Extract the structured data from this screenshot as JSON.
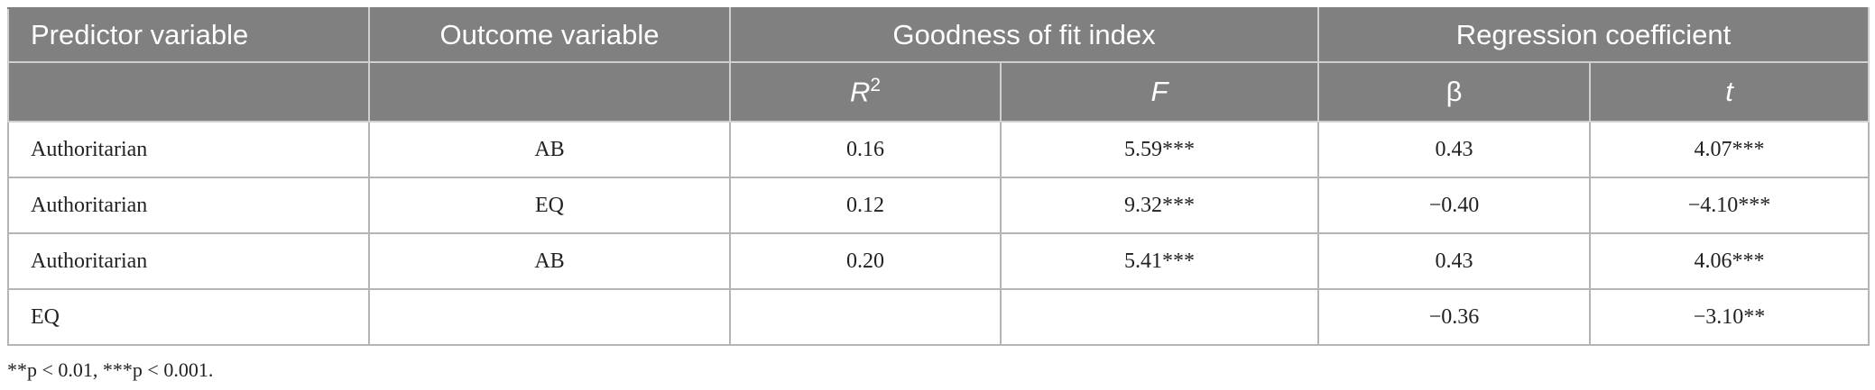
{
  "table": {
    "header": [
      [
        "Predictor variable",
        "Outcome variable",
        "Goodness of fit index",
        "Regression coefficient"
      ],
      [
        null,
        null,
        {
          "text": "R",
          "sup": "2"
        },
        "F",
        "β",
        "t"
      ]
    ],
    "rows": [
      [
        "Authoritarian",
        "AB",
        "0.16",
        "5.59***",
        "0.43",
        "4.07***"
      ],
      [
        "Authoritarian",
        "EQ",
        "0.12",
        "9.32***",
        "−0.40",
        "−4.10***"
      ],
      [
        "Authoritarian",
        "AB",
        "0.20",
        "5.41***",
        "0.43",
        "4.06***"
      ],
      [
        "EQ",
        null,
        null,
        null,
        "−0.36",
        "−3.10**"
      ]
    ],
    "footnote": "**p < 0.01, ***p < 0.001."
  }
}
